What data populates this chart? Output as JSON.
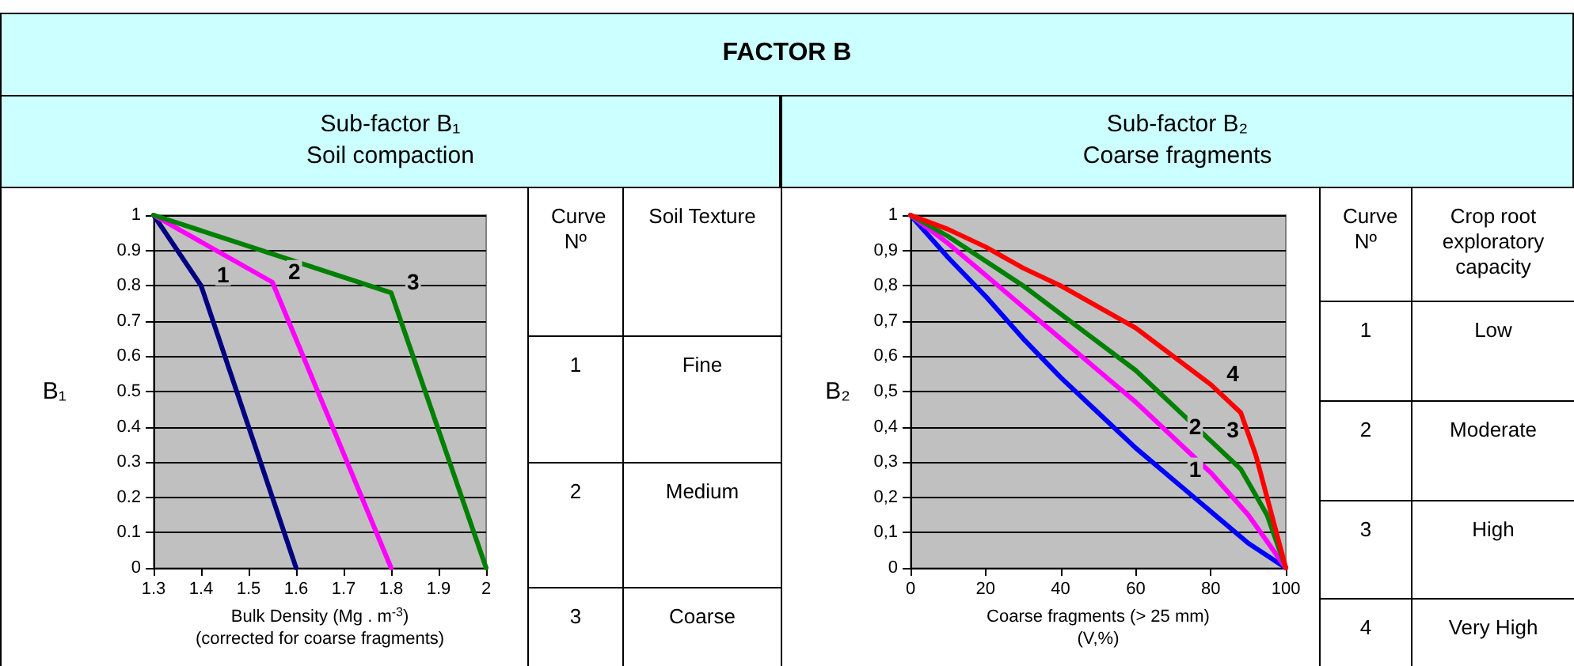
{
  "chart_data": [
    {
      "type": "line",
      "title": "Sub-factor B₁",
      "subtitle": "Soil compaction",
      "xlabel": "Bulk Density (Mg . m$^{-3}$)\n(corrected for coarse fragments)",
      "ylabel": "B₁",
      "series": [
        {
          "name": "1",
          "color": "#000080",
          "x": [
            1.3,
            1.4,
            1.6
          ],
          "values": [
            1,
            0.8,
            0
          ]
        },
        {
          "name": "2",
          "color": "#ff00ff",
          "x": [
            1.3,
            1.55,
            1.8
          ],
          "values": [
            1,
            0.81,
            0
          ]
        },
        {
          "name": "3",
          "color": "#008000",
          "x": [
            1.3,
            1.8,
            2
          ],
          "values": [
            1,
            0.78,
            0
          ]
        }
      ],
      "xlim": [
        1.3,
        2
      ],
      "xticks": [
        1.3,
        1.4,
        1.5,
        1.6,
        1.7,
        1.8,
        1.9,
        2
      ],
      "ylim": [
        0,
        1
      ],
      "yticks": [
        0,
        0.1,
        0.2,
        0.3,
        0.4,
        0.5,
        0.6,
        0.7,
        0.8,
        0.9,
        1
      ],
      "grid": "y",
      "marker": "none",
      "line_style": "solid",
      "annotations": [
        "FACTOR B",
        "Curve Nº",
        "Soil Texture",
        "1",
        "Fine",
        "2",
        "Medium",
        "3",
        "Coarse"
      ]
    },
    {
      "type": "line",
      "title": "Sub-factor B₂",
      "subtitle": "Coarse fragments",
      "xlabel": "Coarse fragments (> 25 mm)\n(V,%)",
      "ylabel": "B₂",
      "series": [
        {
          "name": "1",
          "color": "#0000ff",
          "x": [
            0,
            10,
            20,
            30,
            40,
            50,
            60,
            70,
            80,
            90,
            100
          ],
          "values": [
            1,
            0.88,
            0.77,
            0.65,
            0.54,
            0.44,
            0.34,
            0.25,
            0.16,
            0.07,
            0
          ]
        },
        {
          "name": "2",
          "color": "#ff00ff",
          "x": [
            0,
            10,
            20,
            30,
            40,
            50,
            60,
            70,
            80,
            90,
            100
          ],
          "values": [
            1,
            0.92,
            0.83,
            0.74,
            0.65,
            0.56,
            0.47,
            0.37,
            0.27,
            0.15,
            0
          ]
        },
        {
          "name": "3",
          "color": "#008000",
          "x": [
            0,
            10,
            20,
            30,
            40,
            50,
            60,
            70,
            80,
            88,
            95,
            100
          ],
          "values": [
            1,
            0.94,
            0.87,
            0.8,
            0.72,
            0.64,
            0.56,
            0.46,
            0.36,
            0.28,
            0.15,
            0
          ]
        },
        {
          "name": "4",
          "color": "#ff0000",
          "x": [
            0,
            10,
            20,
            30,
            40,
            50,
            60,
            70,
            80,
            88,
            92,
            96,
            100
          ],
          "values": [
            1,
            0.96,
            0.91,
            0.85,
            0.8,
            0.74,
            0.68,
            0.6,
            0.52,
            0.44,
            0.32,
            0.16,
            0
          ]
        }
      ],
      "xlim": [
        0,
        100
      ],
      "xticks": [
        0,
        20,
        40,
        60,
        80,
        100
      ],
      "ylim": [
        0,
        1
      ],
      "yticks": [
        0,
        {
          "value": 0.1,
          "label": "0,1"
        },
        {
          "value": 0.2,
          "label": "0,2"
        },
        {
          "value": 0.3,
          "label": "0,3"
        },
        {
          "value": 0.4,
          "label": "0,4"
        },
        {
          "value": 0.5,
          "label": "0,5"
        },
        {
          "value": 0.6,
          "label": "0,6"
        },
        {
          "value": 0.7,
          "label": "0,7"
        },
        {
          "value": 0.8,
          "label": "0,8"
        },
        {
          "value": 0.9,
          "label": "0,9"
        },
        1
      ],
      "grid": "y",
      "marker": "none",
      "line_style": "solid",
      "annotations": [
        "Curve Nº",
        "Crop root exploratory capacity",
        "1",
        "Low",
        "2",
        "Moderate",
        "3",
        "High",
        "4",
        "Very High"
      ]
    }
  ]
}
